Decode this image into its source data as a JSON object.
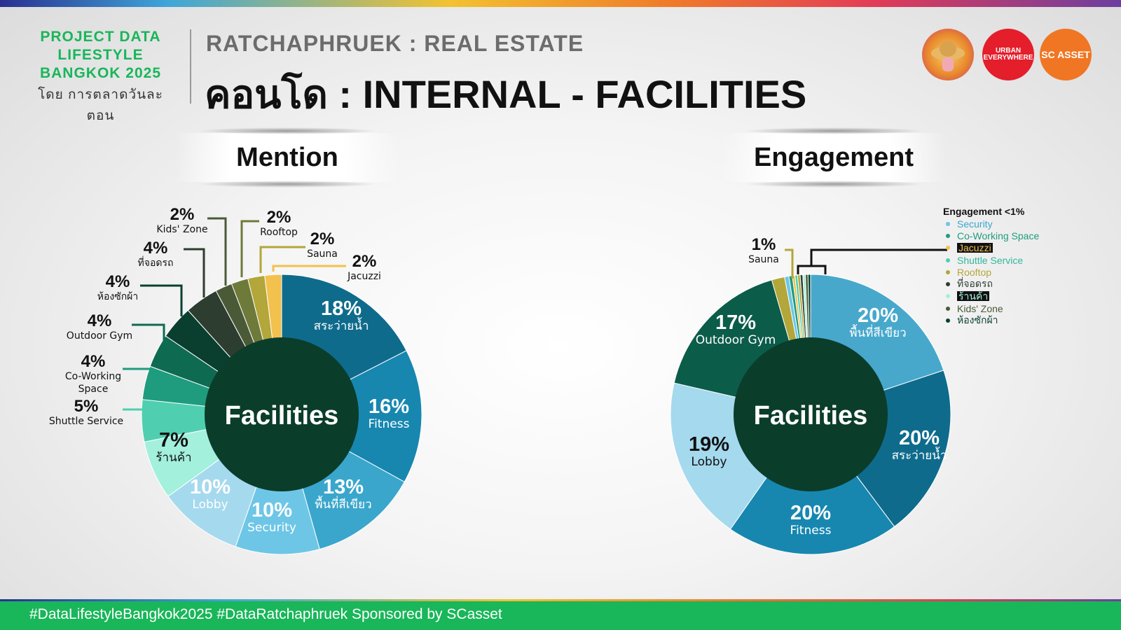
{
  "header": {
    "brand_line1": "PROJECT DATA",
    "brand_line2": "LIFESTYLE",
    "brand_line3": "BANGKOK 2025",
    "brand_by": "โดย การตลาดวันละตอน",
    "subtitle": "RATCHAPHRUEK : REAL ESTATE",
    "title": "คอนโด : INTERNAL - FACILITIES",
    "logos": [
      {
        "name": "lifestyle-logo-icon",
        "text": ""
      },
      {
        "name": "urban-everywhere-logo",
        "text": "URBAN EVERYWHERE"
      },
      {
        "name": "sc-asset-logo",
        "text": "SC ASSET"
      }
    ]
  },
  "colors": {
    "brand_green": "#19b65a",
    "center": "#0b3d2b"
  },
  "chart_data": [
    {
      "type": "pie",
      "title": "Mention",
      "center_label": "Facilities",
      "slices": [
        {
          "label": "สระว่ายน้ำ",
          "pct_label": "18%",
          "value": 18,
          "color": "#0f6b8c"
        },
        {
          "label": "Fitness",
          "pct_label": "16%",
          "value": 16,
          "color": "#1787b0"
        },
        {
          "label": "พื้นที่สีเขียว",
          "pct_label": "13%",
          "value": 13,
          "color": "#3aa6cc"
        },
        {
          "label": "Security",
          "pct_label": "10%",
          "value": 10,
          "color": "#6ec6e6"
        },
        {
          "label": "Lobby",
          "pct_label": "10%",
          "value": 10,
          "color": "#a5d9ee"
        },
        {
          "label": "ร้านค้า",
          "pct_label": "7%",
          "value": 7,
          "color": "#a3f0dc"
        },
        {
          "label": "Shuttle Service",
          "pct_label": "5%",
          "value": 5,
          "color": "#4fcfb0"
        },
        {
          "label": "Co-Working Space",
          "pct_label": "4%",
          "value": 4,
          "color": "#1f9c7e"
        },
        {
          "label": "Outdoor Gym",
          "pct_label": "4%",
          "value": 4,
          "color": "#0f6a52"
        },
        {
          "label": "ห้องซักผ้า",
          "pct_label": "4%",
          "value": 4,
          "color": "#0a3f30"
        },
        {
          "label": "ที่จอดรถ",
          "pct_label": "4%",
          "value": 4,
          "color": "#2d3d30"
        },
        {
          "label": "Kids' Zone",
          "pct_label": "2%",
          "value": 2,
          "color": "#4a5a37"
        },
        {
          "label": "Rooftop",
          "pct_label": "2%",
          "value": 2,
          "color": "#6d7a3a"
        },
        {
          "label": "Sauna",
          "pct_label": "2%",
          "value": 2,
          "color": "#b3a63a"
        },
        {
          "label": "Jacuzzi",
          "pct_label": "2%",
          "value": 2,
          "color": "#f2c14e"
        }
      ]
    },
    {
      "type": "pie",
      "title": "Engagement",
      "center_label": "Facilities",
      "slices": [
        {
          "label": "พื้นที่สีเขียว",
          "pct_label": "20%",
          "value": 20,
          "color": "#47a8cc"
        },
        {
          "label": "สระว่ายน้ำ",
          "pct_label": "20%",
          "value": 20,
          "color": "#0f6b8c"
        },
        {
          "label": "Fitness",
          "pct_label": "20%",
          "value": 20,
          "color": "#1787b0"
        },
        {
          "label": "Lobby",
          "pct_label": "19%",
          "value": 19,
          "color": "#a5d9ee"
        },
        {
          "label": "Outdoor Gym",
          "pct_label": "17%",
          "value": 17,
          "color": "#0c5c4a"
        },
        {
          "label": "Sauna",
          "pct_label": "1%",
          "value": 1.5,
          "color": "#b3a63a"
        },
        {
          "label": "Security",
          "pct_label": "",
          "value": 0.5,
          "color": "#6ec6e6"
        },
        {
          "label": "Co-Working Space",
          "pct_label": "",
          "value": 0.4,
          "color": "#1f9c7e"
        },
        {
          "label": "Jacuzzi",
          "pct_label": "",
          "value": 0.3,
          "color": "#f2c14e"
        },
        {
          "label": "Shuttle Service",
          "pct_label": "",
          "value": 0.3,
          "color": "#4fcfb0"
        },
        {
          "label": "Rooftop",
          "pct_label": "",
          "value": 0.3,
          "color": "#b3a63a"
        },
        {
          "label": "ที่จอดรถ",
          "pct_label": "",
          "value": 0.3,
          "color": "#2d3d30"
        },
        {
          "label": "ร้านค้า",
          "pct_label": "",
          "value": 0.3,
          "color": "#a3f0dc"
        },
        {
          "label": "Kids' Zone",
          "pct_label": "",
          "value": 0.3,
          "color": "#4a5a37"
        },
        {
          "label": "ห้องซักผ้า",
          "pct_label": "",
          "value": 0.3,
          "color": "#0a3f30"
        }
      ],
      "small_legend_title": "Engagement <1%",
      "small_legend": [
        {
          "label": "Security",
          "color": "#3aa6cc",
          "dot": "#6ec6e6",
          "highlight": false
        },
        {
          "label": "Co-Working Space",
          "color": "#1f9c7e",
          "dot": "#1f9c7e",
          "highlight": false
        },
        {
          "label": "Jacuzzi",
          "color": "#f2c14e",
          "dot": "#f2c14e",
          "highlight": true
        },
        {
          "label": "Shuttle Service",
          "color": "#2fb89a",
          "dot": "#4fcfb0",
          "highlight": false
        },
        {
          "label": "Rooftop",
          "color": "#b3a63a",
          "dot": "#b3a63a",
          "highlight": false
        },
        {
          "label": "ที่จอดรถ",
          "color": "#2d3d30",
          "dot": "#2d3d30",
          "highlight": false
        },
        {
          "label": "ร้านค้า",
          "color": "#a3f0dc",
          "dot": "#a3f0dc",
          "highlight": true
        },
        {
          "label": "Kids' Zone",
          "color": "#4a5a37",
          "dot": "#4a5a37",
          "highlight": false
        },
        {
          "label": "ห้องซักผ้า",
          "color": "#0a3f30",
          "dot": "#0a3f30",
          "highlight": false
        }
      ]
    }
  ],
  "footer": {
    "text": "#DataLifestyleBangkok2025 #DataRatchaphruek Sponsored by SCasset"
  }
}
